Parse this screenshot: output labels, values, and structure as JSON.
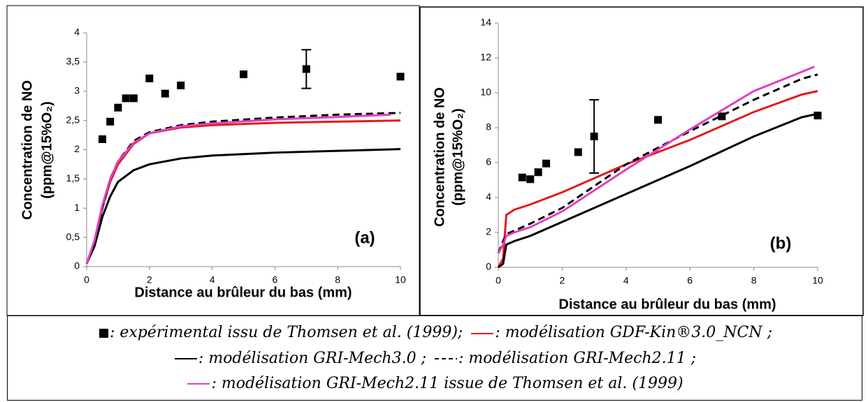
{
  "chart_data": [
    {
      "type": "line",
      "annotation": "(a)",
      "x_label": "Distance au brûleur du bas (mm)",
      "y_label": [
        "Concentration de NO",
        "(ppm@15%O₂)"
      ],
      "xlim": [
        0,
        10
      ],
      "xticks": [
        0,
        2,
        4,
        6,
        8,
        10
      ],
      "ylim": [
        0,
        4
      ],
      "yticks": [
        0,
        {
          "value": 0.5,
          "label": "0,5"
        },
        1,
        {
          "value": 1.5,
          "label": "1,5"
        },
        2,
        {
          "value": 2.5,
          "label": "2,5"
        },
        3,
        {
          "value": 3.5,
          "label": "3,5"
        },
        4
      ],
      "series": [
        {
          "marker": "square",
          "color": "#000000",
          "x": [
            0.5,
            0.75,
            1,
            1.25,
            1.5,
            2,
            2.5,
            3,
            5,
            7,
            10
          ],
          "values": [
            2.18,
            2.48,
            2.72,
            2.88,
            2.88,
            3.22,
            2.96,
            3.1,
            3.29,
            3.38,
            3.25
          ],
          "errors": [
            null,
            null,
            null,
            null,
            null,
            null,
            null,
            null,
            null,
            0.33,
            null
          ]
        },
        {
          "color": "#e31a1c",
          "dash": "solid",
          "x": [
            0,
            0.25,
            0.5,
            0.75,
            1,
            1.5,
            2,
            3,
            4,
            6,
            8,
            10
          ],
          "values": [
            0.05,
            0.4,
            1.0,
            1.45,
            1.75,
            2.1,
            2.28,
            2.38,
            2.42,
            2.46,
            2.48,
            2.5
          ]
        },
        {
          "color": "#000000",
          "dash": "solid",
          "x": [
            0,
            0.25,
            0.5,
            0.75,
            1,
            1.5,
            2,
            3,
            4,
            6,
            8,
            10
          ],
          "values": [
            0.05,
            0.35,
            0.85,
            1.2,
            1.45,
            1.65,
            1.75,
            1.85,
            1.9,
            1.95,
            1.98,
            2.01
          ]
        },
        {
          "color": "#000000",
          "dash": "dashed",
          "x": [
            0,
            0.25,
            0.5,
            0.75,
            1,
            1.5,
            2,
            3,
            4,
            6,
            8,
            10
          ],
          "values": [
            0.05,
            0.4,
            1.0,
            1.5,
            1.8,
            2.15,
            2.3,
            2.42,
            2.48,
            2.55,
            2.6,
            2.63
          ]
        },
        {
          "color": "#e040c0",
          "dash": "solid",
          "x": [
            0,
            0.25,
            0.5,
            0.75,
            1,
            1.5,
            2,
            3,
            4,
            6,
            8,
            9.7
          ],
          "values": [
            0.05,
            0.45,
            1.05,
            1.5,
            1.8,
            2.12,
            2.28,
            2.4,
            2.45,
            2.52,
            2.56,
            2.6
          ]
        }
      ]
    },
    {
      "type": "line",
      "annotation": "(b)",
      "x_label": "Distance au brûleur du bas (mm)",
      "y_label": [
        "Concentration de NO",
        "(ppm@15%O₂)"
      ],
      "xlim": [
        0,
        10
      ],
      "xticks": [
        0,
        2,
        4,
        6,
        8,
        10
      ],
      "ylim": [
        0,
        14
      ],
      "yticks": [
        0,
        2,
        4,
        6,
        8,
        10,
        12,
        14
      ],
      "series": [
        {
          "marker": "square",
          "color": "#000000",
          "x": [
            0.75,
            1,
            1.25,
            1.5,
            2.5,
            3,
            5,
            7,
            10
          ],
          "values": [
            5.15,
            5.05,
            5.45,
            5.95,
            6.6,
            7.5,
            8.45,
            8.65,
            8.7
          ],
          "errors": [
            null,
            null,
            null,
            null,
            null,
            2.1,
            null,
            null,
            null
          ]
        },
        {
          "color": "#e31a1c",
          "dash": "solid",
          "x": [
            0,
            0.15,
            0.25,
            0.5,
            1,
            2,
            4,
            6,
            8,
            9.5,
            10
          ],
          "values": [
            0,
            0.5,
            3.0,
            3.3,
            3.6,
            4.3,
            5.9,
            7.3,
            8.9,
            9.9,
            10.1
          ]
        },
        {
          "color": "#000000",
          "dash": "solid",
          "x": [
            0,
            0.15,
            0.25,
            0.5,
            1,
            2,
            4,
            6,
            8,
            9.5,
            10
          ],
          "values": [
            0,
            0.2,
            1.3,
            1.5,
            1.8,
            2.6,
            4.2,
            5.8,
            7.5,
            8.6,
            8.8
          ]
        },
        {
          "color": "#000000",
          "dash": "dashed",
          "x": [
            0,
            0.15,
            0.25,
            0.5,
            1,
            2,
            4,
            6,
            8,
            9.5,
            10
          ],
          "values": [
            0.8,
            1.5,
            1.9,
            2.1,
            2.5,
            3.4,
            5.9,
            7.8,
            9.6,
            10.8,
            11.05
          ]
        },
        {
          "color": "#e040c0",
          "dash": "solid",
          "x": [
            0,
            0.15,
            0.25,
            0.5,
            1,
            2,
            4,
            6,
            8,
            9.5,
            9.9
          ],
          "values": [
            0.8,
            1.3,
            1.8,
            2.0,
            2.3,
            3.2,
            5.6,
            7.9,
            10.1,
            11.2,
            11.5
          ]
        }
      ]
    }
  ],
  "caption": [
    [
      {
        "style": "square",
        "color": "#000000",
        "text": ": expérimental issu de Thomsen et al. (1999);"
      },
      {
        "style": "solid",
        "color": "#e31a1c",
        "text": ": modélisation GDF-Kin®3.0_NCN ;"
      }
    ],
    [
      {
        "style": "solid",
        "color": "#000000",
        "text": ": modélisation GRI-Mech3.0 ;"
      },
      {
        "style": "dashed",
        "color": "#000000",
        "text": ": modélisation GRI-Mech2.11 ;"
      }
    ],
    [
      {
        "style": "solid",
        "color": "#e040c0",
        "text": ": modélisation GRI-Mech2.11 issue de Thomsen et al. (1999)"
      }
    ]
  ]
}
